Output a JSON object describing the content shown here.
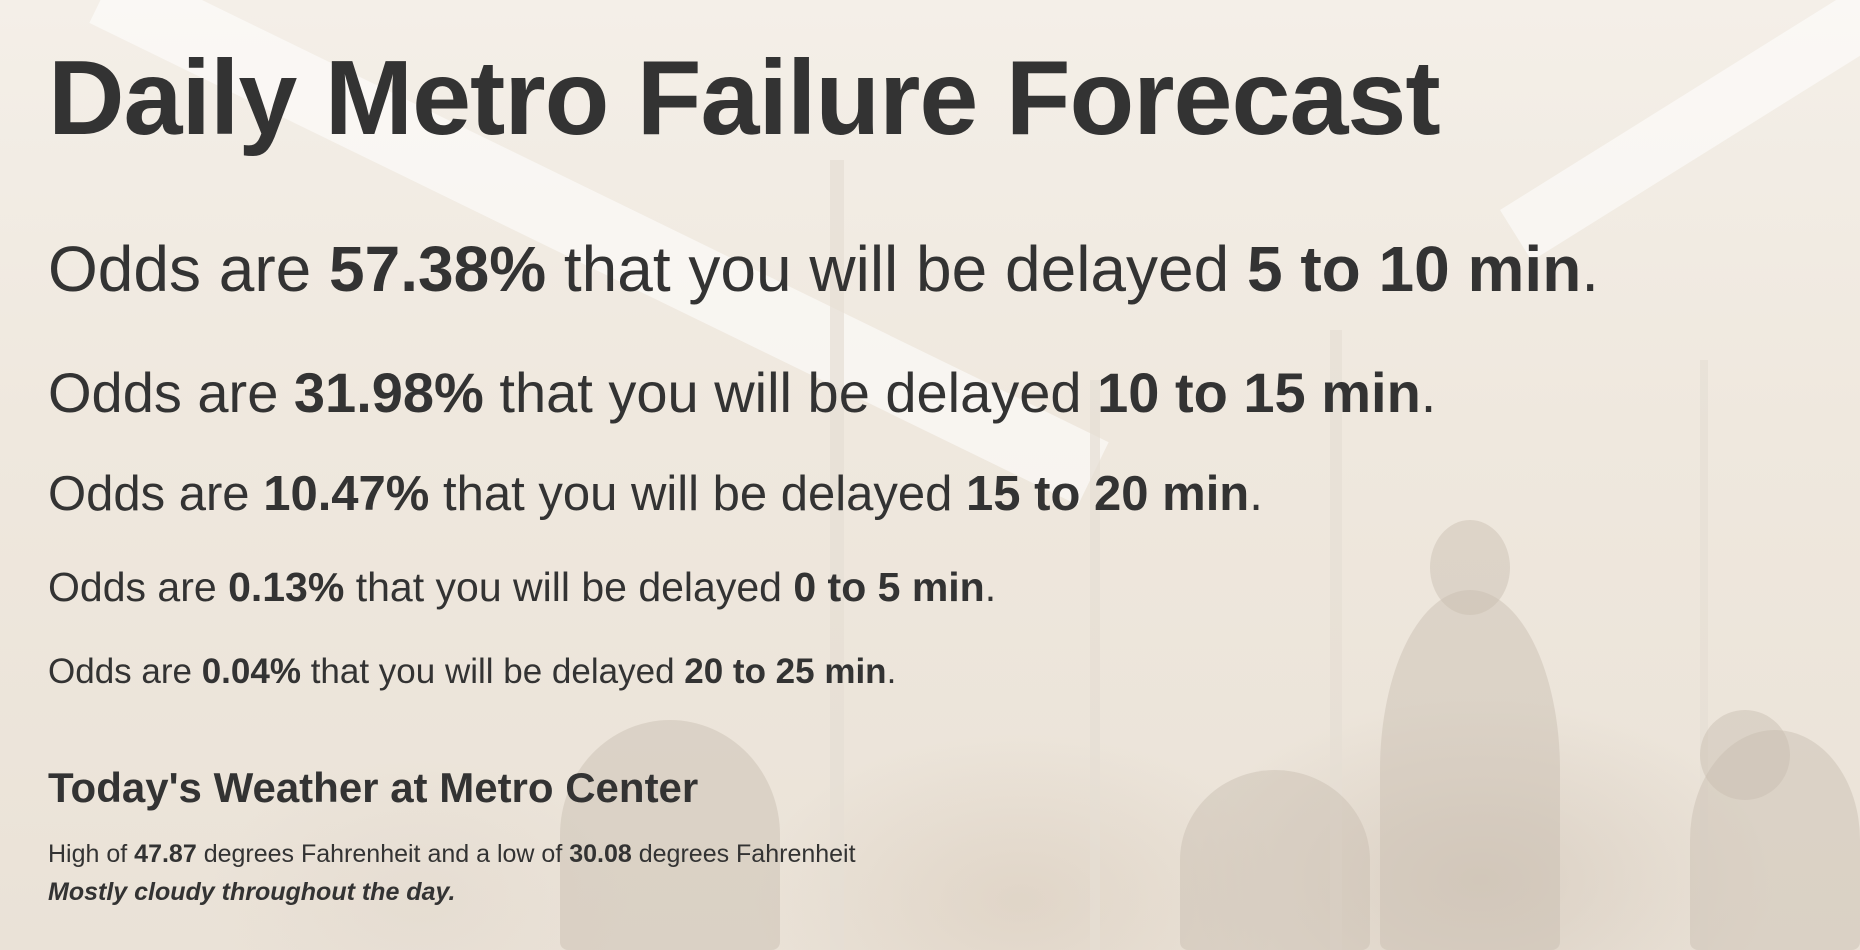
{
  "page": {
    "title": "Daily Metro Failure Forecast"
  },
  "odds_prefix": "Odds are",
  "odds_middle": "that you will be delayed",
  "odds_suffix": ".",
  "forecasts": [
    {
      "probability": "57.38%",
      "delay": "5 to 10 min"
    },
    {
      "probability": "31.98%",
      "delay": "10 to 15 min"
    },
    {
      "probability": "10.47%",
      "delay": "15 to 20 min"
    },
    {
      "probability": "0.13%",
      "delay": "0 to 5 min"
    },
    {
      "probability": "0.04%",
      "delay": "20 to 25 min"
    }
  ],
  "weather": {
    "heading_prefix": "Today's Weather at",
    "station": "Metro Center",
    "high_prefix": "High of",
    "high": "47.87",
    "unit": "degrees Fahrenheit",
    "low_prefix": "and a low of",
    "low": "30.08",
    "summary": "Mostly cloudy throughout the day."
  },
  "colors": {
    "text": "#333333",
    "background": "#f3ede4"
  }
}
